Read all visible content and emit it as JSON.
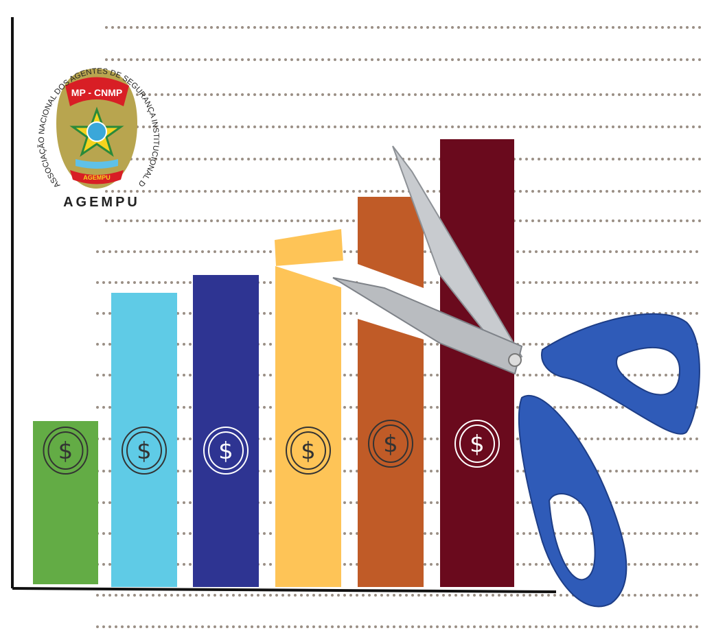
{
  "logo": {
    "ring_text": "ASSOCIAÇÃO NACIONAL DOS AGENTES DE SEGURANÇA INSTITUCIONAL DO MPU E CNMP",
    "banner_top": "MP - CNMP",
    "ribbon_text": "SEGURANÇA INSTITUCIONAL",
    "banner_bottom": "AGEMPU",
    "title": "AGEMPU"
  },
  "colors": {
    "bars": [
      "#63ac45",
      "#5fcbe6",
      "#2e3492",
      "#fec457",
      "#c05b27",
      "#6a0a1d"
    ],
    "grid_dots": "#9a8f85",
    "axis": "#111111",
    "scissor_handle": "#2f5bb8",
    "scissor_blade": "#b9bcc0",
    "shield": "#b8a54f"
  },
  "icons": [
    "dollar-coin-icon",
    "scissors-icon"
  ]
}
